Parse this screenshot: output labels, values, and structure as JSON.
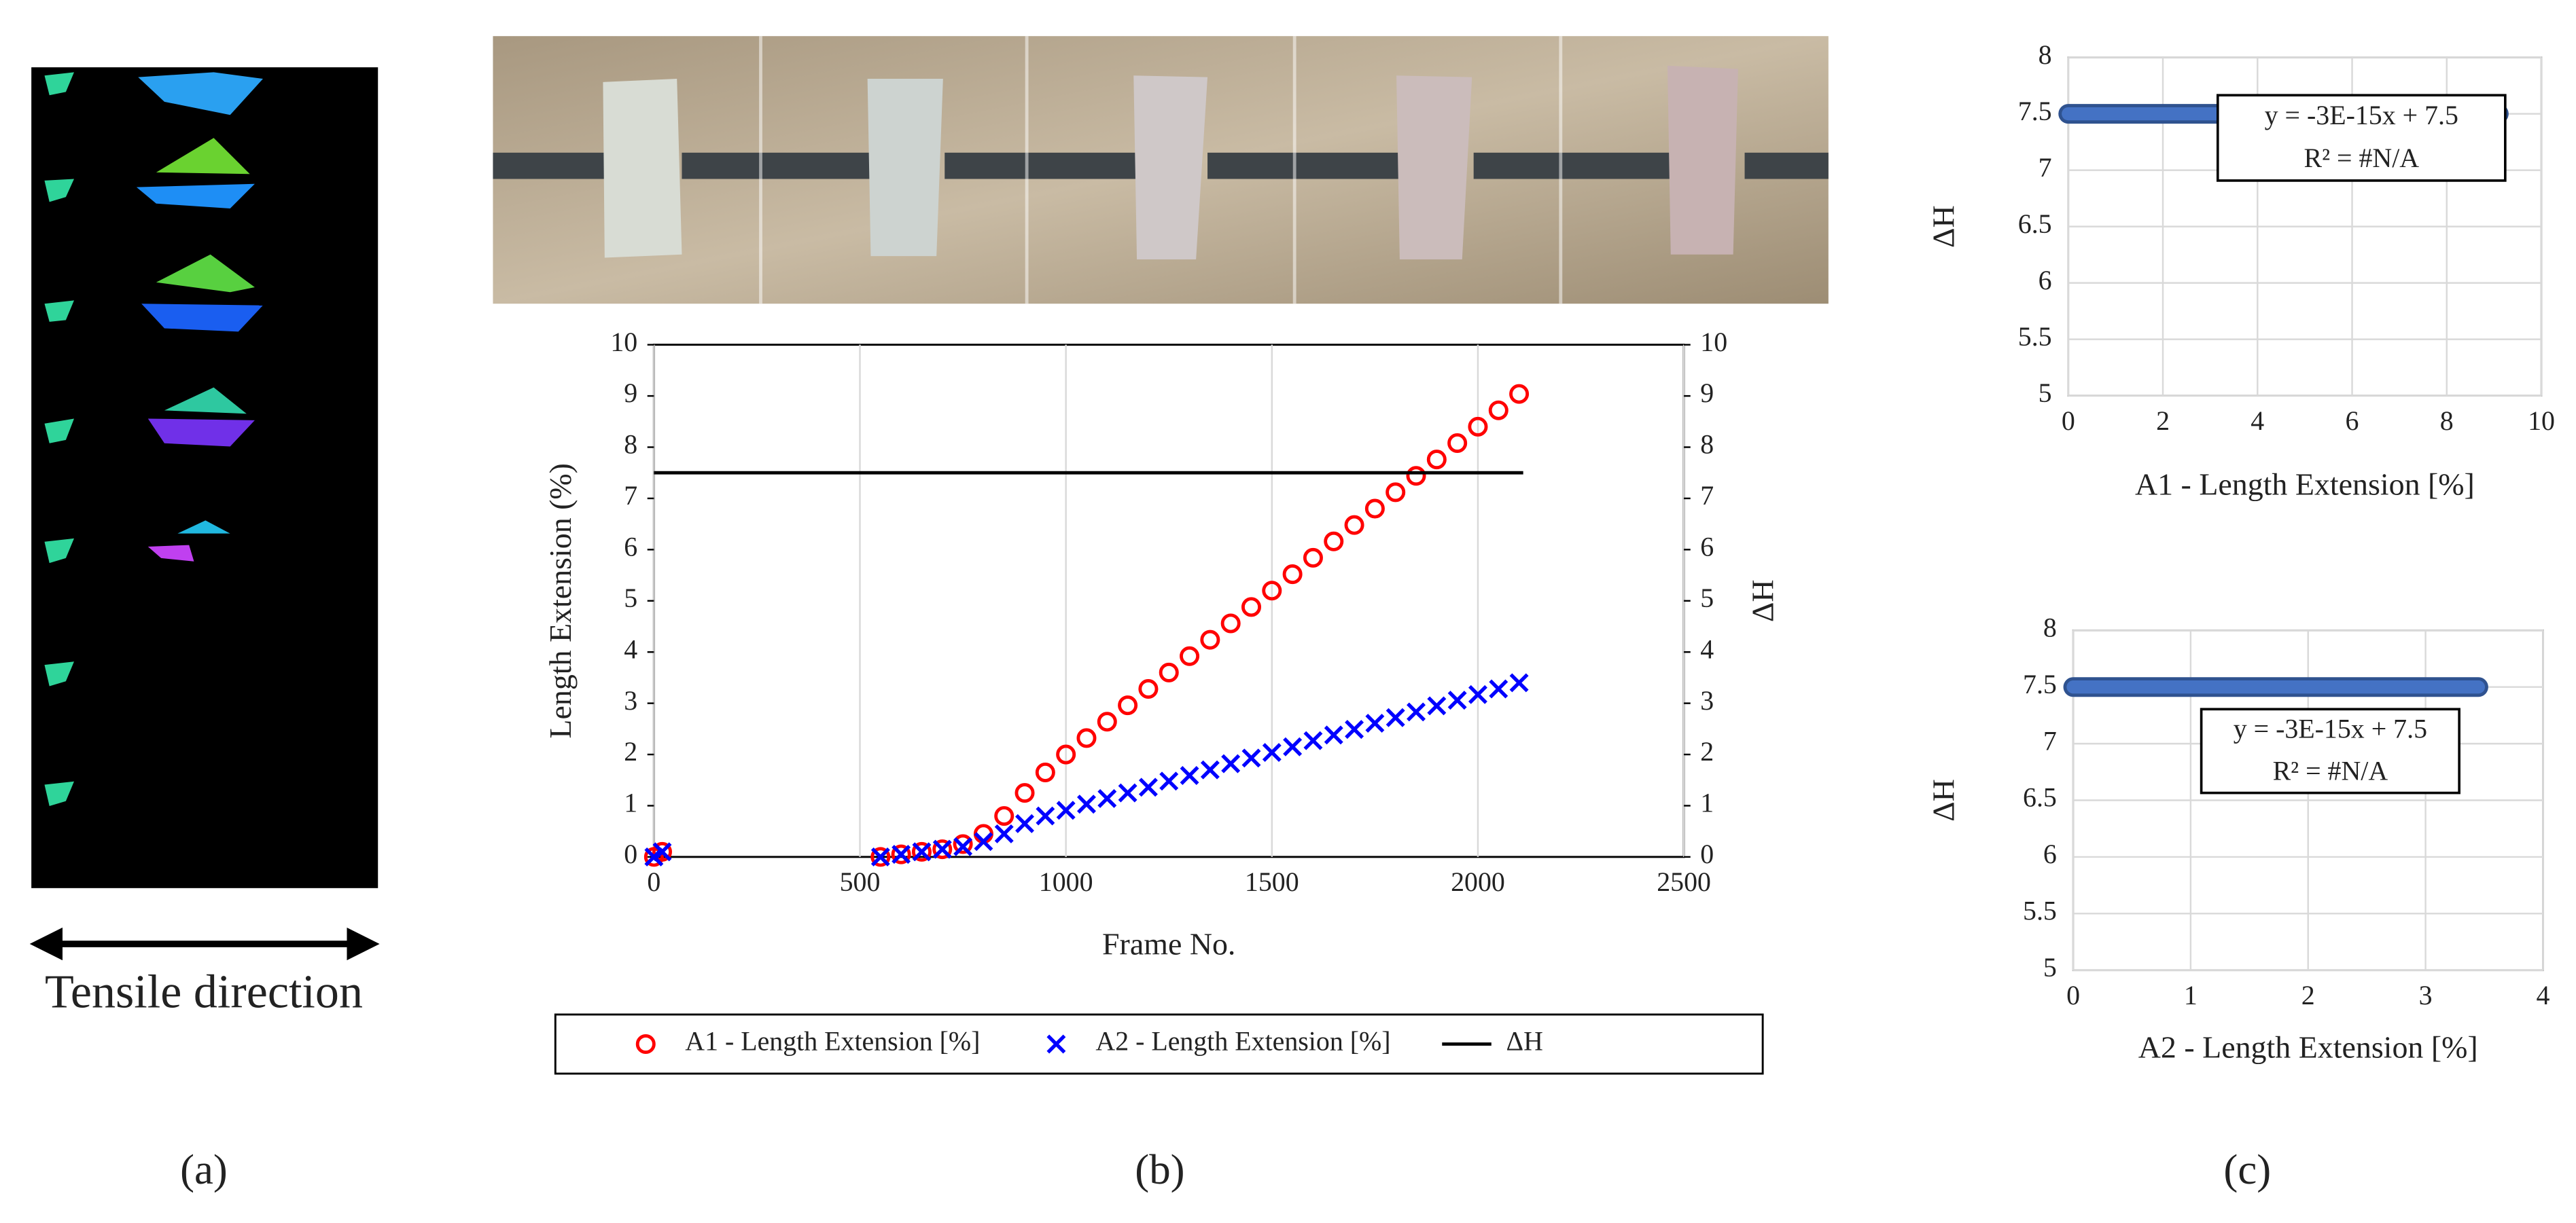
{
  "panels": {
    "a": {
      "label": "(a)",
      "caption": "Tensile direction"
    },
    "b": {
      "label": "(b)"
    },
    "c": {
      "label": "(c)"
    }
  },
  "chart_data": [
    {
      "type": "scatter",
      "x_label": "Frame No.",
      "y_label": "Length Extension (%)",
      "y2_label": "ΔH",
      "xlim": [
        0,
        2500
      ],
      "xticks": [
        0,
        500,
        1000,
        1500,
        2000,
        2500
      ],
      "ylim": [
        0,
        10
      ],
      "yticks": [
        0,
        1,
        2,
        3,
        4,
        5,
        6,
        7,
        8,
        9,
        10
      ],
      "y2lim": [
        0,
        10
      ],
      "y2ticks": [
        0,
        1,
        2,
        3,
        4,
        5,
        6,
        7,
        8,
        9,
        10
      ],
      "grid": "x",
      "legend": "bottom",
      "series": [
        {
          "name": "A1 - Length Extension [%]",
          "color": "#ff0000",
          "marker": "circle",
          "x": [
            0,
            20,
            550,
            600,
            650,
            700,
            750,
            800,
            850,
            900,
            950,
            1000,
            1050,
            1100,
            1150,
            1200,
            1250,
            1300,
            1350,
            1400,
            1450,
            1500,
            1550,
            1600,
            1650,
            1700,
            1750,
            1800,
            1850,
            1900,
            1950,
            2000,
            2050,
            2100
          ],
          "values": [
            0,
            0.1,
            0,
            0.05,
            0.1,
            0.15,
            0.25,
            0.45,
            0.8,
            1.25,
            1.65,
            2.0,
            2.32,
            2.64,
            2.96,
            3.28,
            3.6,
            3.92,
            4.24,
            4.56,
            4.88,
            5.2,
            5.52,
            5.84,
            6.16,
            6.48,
            6.8,
            7.12,
            7.44,
            7.76,
            8.08,
            8.4,
            8.72,
            9.04
          ]
        },
        {
          "name": "A2 - Length Extension [%]",
          "color": "#0000ff",
          "marker": "x",
          "x": [
            0,
            20,
            550,
            600,
            650,
            700,
            750,
            800,
            850,
            900,
            950,
            1000,
            1050,
            1100,
            1150,
            1200,
            1250,
            1300,
            1350,
            1400,
            1450,
            1500,
            1550,
            1600,
            1650,
            1700,
            1750,
            1800,
            1850,
            1900,
            1950,
            2000,
            2050,
            2100
          ],
          "values": [
            0,
            0.1,
            0,
            0.05,
            0.1,
            0.15,
            0.2,
            0.3,
            0.45,
            0.65,
            0.8,
            0.91,
            1.03,
            1.14,
            1.25,
            1.36,
            1.48,
            1.59,
            1.7,
            1.82,
            1.93,
            2.04,
            2.15,
            2.27,
            2.38,
            2.49,
            2.61,
            2.72,
            2.83,
            2.95,
            3.06,
            3.17,
            3.28,
            3.4
          ]
        },
        {
          "name": "ΔH",
          "color": "#000000",
          "marker": "line",
          "axis": "y2",
          "x": [
            0,
            2110
          ],
          "values": [
            7.5,
            7.5
          ]
        }
      ]
    },
    {
      "type": "line",
      "x_label": "A1 - Length Extension [%]",
      "y_label": "ΔH",
      "xlim": [
        0,
        10
      ],
      "xticks": [
        0,
        2,
        4,
        6,
        8,
        10
      ],
      "ylim": [
        5,
        8
      ],
      "yticks": [
        5,
        5.5,
        6,
        6.5,
        7,
        7.5,
        8
      ],
      "grid": "both",
      "series": [
        {
          "color": "#4472c4",
          "x": [
            0,
            9.1
          ],
          "values": [
            7.5,
            7.5
          ]
        }
      ],
      "annotations": [
        "y = -3E-15x + 7.5",
        "R² = #N/A"
      ]
    },
    {
      "type": "line",
      "x_label": "A2 - Length Extension [%]",
      "y_label": "ΔH",
      "xlim": [
        0,
        4
      ],
      "xticks": [
        0,
        1,
        2,
        3,
        4
      ],
      "ylim": [
        5,
        8
      ],
      "yticks": [
        5,
        5.5,
        6,
        6.5,
        7,
        7.5,
        8
      ],
      "grid": "both",
      "series": [
        {
          "color": "#4472c4",
          "x": [
            0,
            3.45
          ],
          "values": [
            7.5,
            7.5
          ]
        }
      ],
      "annotations": [
        "y = -3E-15x + 7.5",
        "R² = #N/A"
      ]
    }
  ]
}
